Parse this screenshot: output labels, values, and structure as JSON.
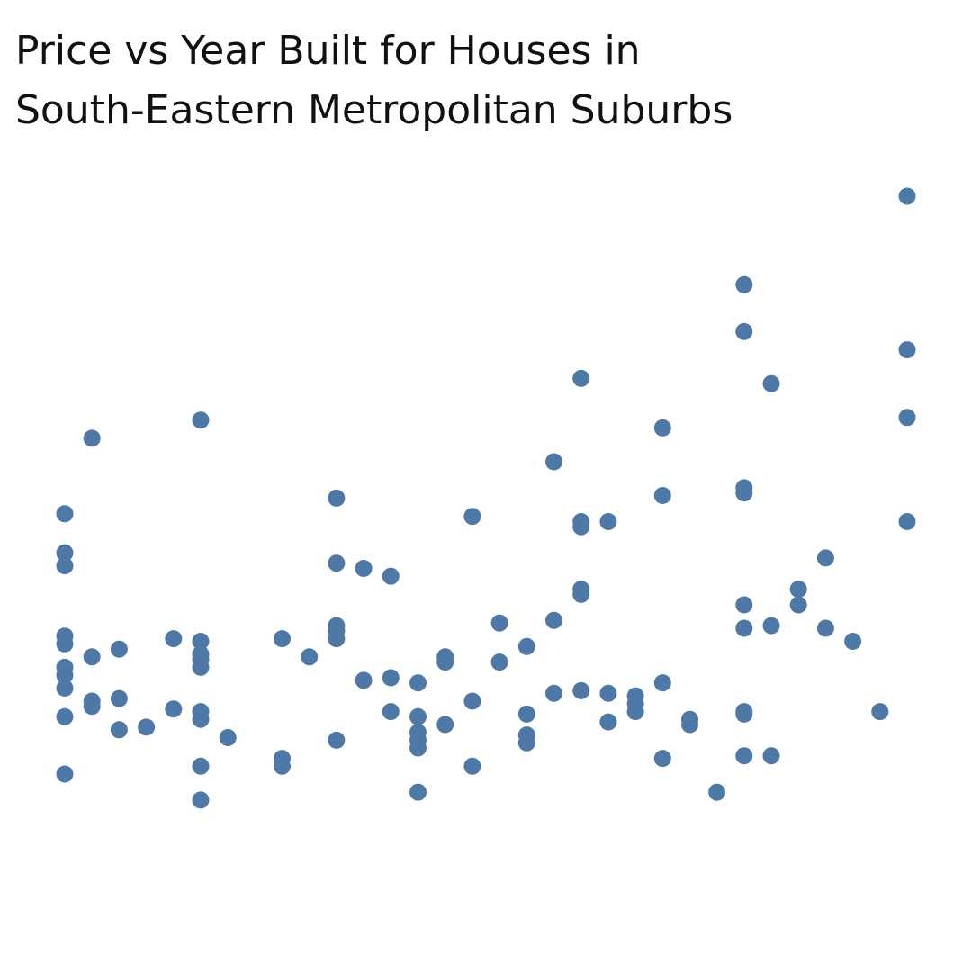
{
  "chart_data": {
    "type": "scatter",
    "title_lines": [
      "Price vs Year Built for Houses in",
      "South-Eastern Metropolitan Suburbs"
    ],
    "xlabel": "",
    "ylabel": "",
    "axes_visible": false,
    "grid": false,
    "legend": "none",
    "marker_color": "#4e79a7",
    "xlim": [
      1998,
      2030
    ],
    "ylim": [
      0,
      300
    ],
    "points": [
      [
        2000,
        55
      ],
      [
        2000,
        77
      ],
      [
        2000,
        88
      ],
      [
        2000,
        93
      ],
      [
        2000,
        96
      ],
      [
        2000,
        105
      ],
      [
        2000,
        108
      ],
      [
        2000,
        135
      ],
      [
        2000,
        140
      ],
      [
        2000,
        155
      ],
      [
        2001,
        81
      ],
      [
        2001,
        83
      ],
      [
        2001,
        100
      ],
      [
        2001,
        184
      ],
      [
        2002,
        72
      ],
      [
        2002,
        84
      ],
      [
        2002,
        103
      ],
      [
        2003,
        73
      ],
      [
        2004,
        80
      ],
      [
        2004,
        107
      ],
      [
        2005,
        45
      ],
      [
        2005,
        58
      ],
      [
        2005,
        76
      ],
      [
        2005,
        79
      ],
      [
        2005,
        96
      ],
      [
        2005,
        99
      ],
      [
        2005,
        101
      ],
      [
        2005,
        106
      ],
      [
        2005,
        191
      ],
      [
        2006,
        69
      ],
      [
        2008,
        58
      ],
      [
        2008,
        61
      ],
      [
        2008,
        107
      ],
      [
        2009,
        100
      ],
      [
        2010,
        68
      ],
      [
        2010,
        107
      ],
      [
        2010,
        110
      ],
      [
        2010,
        112
      ],
      [
        2010,
        136
      ],
      [
        2010,
        161
      ],
      [
        2011,
        91
      ],
      [
        2011,
        134
      ],
      [
        2012,
        79
      ],
      [
        2012,
        92
      ],
      [
        2012,
        131
      ],
      [
        2013,
        48
      ],
      [
        2013,
        65
      ],
      [
        2013,
        68
      ],
      [
        2013,
        71
      ],
      [
        2013,
        77
      ],
      [
        2013,
        90
      ],
      [
        2014,
        74
      ],
      [
        2014,
        98
      ],
      [
        2014,
        100
      ],
      [
        2015,
        58
      ],
      [
        2015,
        83
      ],
      [
        2015,
        154
      ],
      [
        2016,
        98
      ],
      [
        2016,
        113
      ],
      [
        2017,
        67
      ],
      [
        2017,
        70
      ],
      [
        2017,
        78
      ],
      [
        2017,
        104
      ],
      [
        2018,
        86
      ],
      [
        2018,
        114
      ],
      [
        2018,
        175
      ],
      [
        2019,
        87
      ],
      [
        2019,
        124
      ],
      [
        2019,
        126
      ],
      [
        2019,
        150
      ],
      [
        2019,
        152
      ],
      [
        2019,
        207
      ],
      [
        2020,
        75
      ],
      [
        2020,
        86
      ],
      [
        2020,
        152
      ],
      [
        2021,
        79
      ],
      [
        2021,
        82
      ],
      [
        2021,
        85
      ],
      [
        2022,
        61
      ],
      [
        2022,
        90
      ],
      [
        2022,
        162
      ],
      [
        2022,
        188
      ],
      [
        2023,
        74
      ],
      [
        2023,
        76
      ],
      [
        2024,
        48
      ],
      [
        2025,
        62
      ],
      [
        2025,
        78
      ],
      [
        2025,
        79
      ],
      [
        2025,
        111
      ],
      [
        2025,
        120
      ],
      [
        2025,
        163
      ],
      [
        2025,
        165
      ],
      [
        2025,
        225
      ],
      [
        2025,
        243
      ],
      [
        2026,
        62
      ],
      [
        2026,
        112
      ],
      [
        2026,
        205
      ],
      [
        2027,
        120
      ],
      [
        2027,
        126
      ],
      [
        2028,
        111
      ],
      [
        2028,
        138
      ],
      [
        2029,
        106
      ],
      [
        2030,
        79
      ],
      [
        2031,
        152
      ],
      [
        2031,
        192
      ],
      [
        2031,
        218
      ],
      [
        2031,
        277
      ]
    ]
  }
}
